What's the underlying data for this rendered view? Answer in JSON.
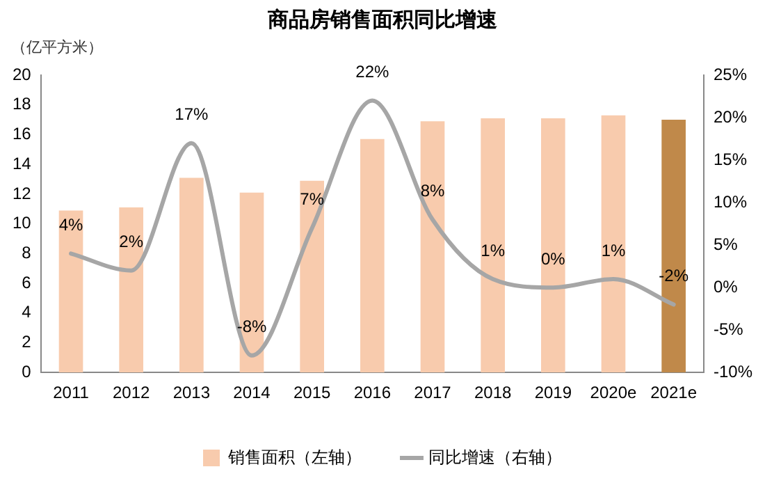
{
  "chart_data": {
    "type": "bar",
    "title": "商品房销售面积同比增速",
    "ylabel": "（亿平方米）",
    "categories": [
      "2011",
      "2012",
      "2013",
      "2014",
      "2015",
      "2016",
      "2017",
      "2018",
      "2019",
      "2020e",
      "2021e"
    ],
    "series": [
      {
        "name": "销售面积（左轴）",
        "color": "#f8cbad",
        "colors": [
          "#f8cbad",
          "#f8cbad",
          "#f8cbad",
          "#f8cbad",
          "#f8cbad",
          "#f8cbad",
          "#f8cbad",
          "#f8cbad",
          "#f8cbad",
          "#f8cbad",
          "#c0894a"
        ],
        "values": [
          10.9,
          11.1,
          13.1,
          12.1,
          12.9,
          15.7,
          16.9,
          17.1,
          17.1,
          17.3,
          17.0
        ]
      },
      {
        "name": "同比增速（右轴）",
        "type": "line",
        "axis": "y2",
        "color": "#a6a6a6",
        "values": [
          4,
          2,
          17,
          -8,
          7,
          22,
          8,
          1,
          0,
          1,
          -2
        ],
        "value_labels": [
          "4%",
          "2%",
          "17%",
          "-8%",
          "7%",
          "22%",
          "8%",
          "1%",
          "0%",
          "1%",
          "-2%"
        ]
      }
    ],
    "ylim": [
      0,
      20
    ],
    "yticks": [
      0,
      2,
      4,
      6,
      8,
      10,
      12,
      14,
      16,
      18,
      20
    ],
    "y2lim": [
      -10,
      25
    ],
    "y2ticks": [
      {
        "value": -10,
        "label": "-10%"
      },
      {
        "value": -5,
        "label": "-5%"
      },
      {
        "value": 0,
        "label": "0%"
      },
      {
        "value": 5,
        "label": "5%"
      },
      {
        "value": 10,
        "label": "10%"
      },
      {
        "value": 15,
        "label": "15%"
      },
      {
        "value": 20,
        "label": "20%"
      },
      {
        "value": 25,
        "label": "25%"
      }
    ],
    "grid": false,
    "legend": "bottom",
    "marker": "none",
    "line_style": "solid"
  }
}
